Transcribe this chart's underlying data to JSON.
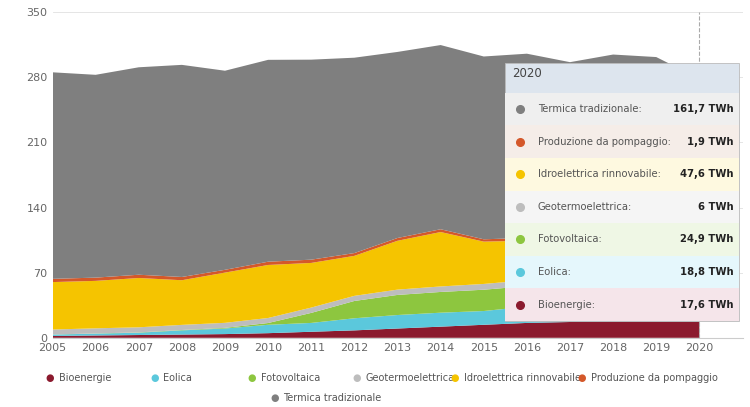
{
  "years": [
    2005,
    2006,
    2007,
    2008,
    2009,
    2010,
    2011,
    2012,
    2013,
    2014,
    2015,
    2016,
    2017,
    2018,
    2019,
    2020
  ],
  "bioenergie": [
    2.0,
    2.5,
    3.0,
    3.5,
    4.0,
    5.0,
    6.5,
    8.0,
    10.0,
    12.0,
    14.0,
    16.0,
    17.0,
    17.5,
    17.5,
    17.6
  ],
  "eolica": [
    1.5,
    2.0,
    2.5,
    4.5,
    6.0,
    9.0,
    9.5,
    13.0,
    14.5,
    15.0,
    14.8,
    17.5,
    17.7,
    17.7,
    20.0,
    18.8
  ],
  "fotovoltaica": [
    0.1,
    0.2,
    0.3,
    0.4,
    0.7,
    1.9,
    10.8,
    18.6,
    21.6,
    22.3,
    22.9,
    22.1,
    24.4,
    22.7,
    23.7,
    24.9
  ],
  "geotermoelettrica": [
    5.3,
    5.5,
    5.5,
    5.5,
    5.4,
    5.4,
    5.7,
    5.5,
    5.7,
    5.9,
    6.2,
    6.3,
    6.2,
    6.1,
    6.1,
    6.0
  ],
  "idroelettrica": [
    51.0,
    51.0,
    53.0,
    48.0,
    54.0,
    57.0,
    48.0,
    43.0,
    52.5,
    58.5,
    45.5,
    42.5,
    36.0,
    50.0,
    47.0,
    47.6
  ],
  "pompaggio": [
    3.5,
    3.5,
    3.5,
    3.5,
    3.0,
    3.5,
    3.5,
    3.0,
    3.0,
    3.0,
    2.5,
    3.0,
    3.0,
    2.5,
    2.5,
    1.9
  ],
  "termica": [
    222.0,
    218.0,
    223.0,
    228.0,
    214.0,
    217.0,
    215.0,
    210.0,
    200.0,
    198.0,
    196.5,
    198.0,
    192.0,
    188.0,
    185.0,
    161.7
  ],
  "colors": {
    "bioenergie": "#8B1A2E",
    "eolica": "#5BC8DC",
    "fotovoltaica": "#8DC63F",
    "geotermoelettrica": "#BDBDBD",
    "idroelettrica": "#F5C400",
    "pompaggio": "#D4582A",
    "termica": "#7F7F7F"
  },
  "tooltip_row_colors": {
    "Termica tradizionale:": "#EFEFEF",
    "Produzione da pompaggio:": "#F5EDE8",
    "Idroelettrica rinnovabile:": "#FEF9E0",
    "Geotermoelettrica:": "#F5F5F5",
    "Fotovoltaica:": "#EFF7E5",
    "Eolica:": "#E5F7FC",
    "Bioenergie:": "#F5E5EA"
  },
  "legend_2020": {
    "title": "2020",
    "entries": [
      {
        "label": "Termica tradizionale:",
        "value": "161,7 TWh",
        "color": "#7F7F7F"
      },
      {
        "label": "Produzione da pompaggio:",
        "value": "1,9 TWh",
        "color": "#D4582A"
      },
      {
        "label": "Idroelettrica rinnovabile:",
        "value": "47,6 TWh",
        "color": "#F5C400"
      },
      {
        "label": "Geotermoelettrica:",
        "value": "6 TWh",
        "color": "#BDBDBD"
      },
      {
        "label": "Fotovoltaica:",
        "value": "24,9 TWh",
        "color": "#8DC63F"
      },
      {
        "label": "Eolica:",
        "value": "18,8 TWh",
        "color": "#5BC8DC"
      },
      {
        "label": "Bioenergie:",
        "value": "17,6 TWh",
        "color": "#8B1A2E"
      }
    ]
  },
  "ylabel_values": [
    0,
    70,
    140,
    210,
    280,
    350
  ],
  "ylim": [
    0,
    350
  ],
  "xlim": [
    2005,
    2021
  ],
  "background_color": "#FFFFFF"
}
